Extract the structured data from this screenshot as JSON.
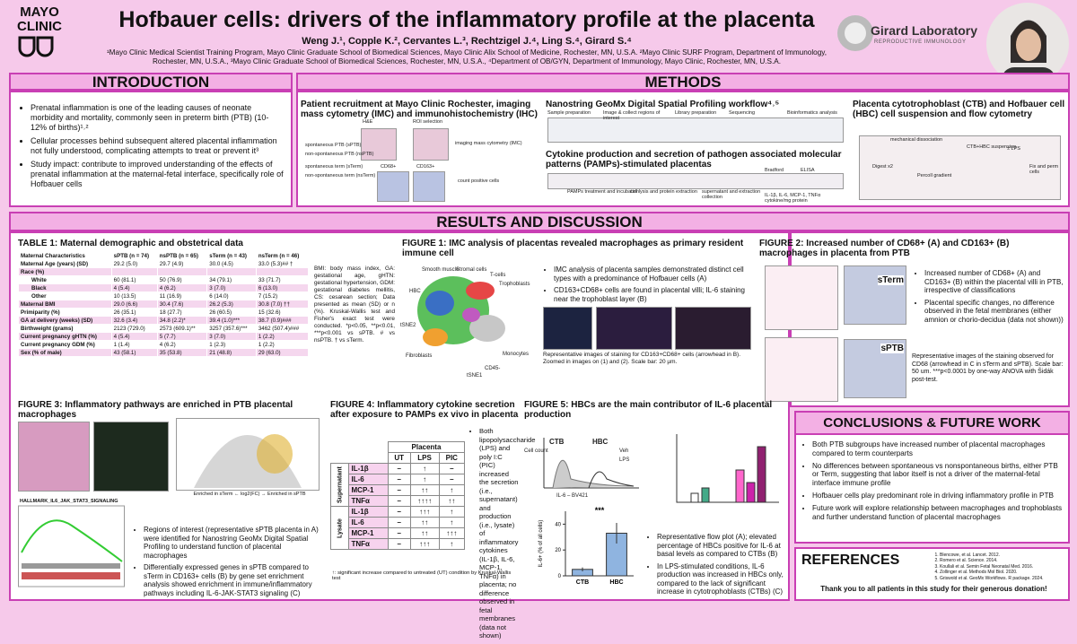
{
  "header": {
    "logo": "MAYO CLINIC",
    "title": "Hofbauer cells: drivers of the inflammatory profile at the placenta",
    "authors": "Weng J.¹, Copple K.², Cervantes L.³, Rechtzigel J.⁴, Ling S.⁴, Girard S.⁴",
    "affiliations": "¹Mayo Clinic Medical Scientist Training Program, Mayo Clinic Graduate School of Biomedical Sciences, Mayo Clinic Alix School of Medicine, Rochester, MN, U.S.A. ²Mayo Clinic SURF Program, Department of Immunology, Rochester, MN, U.S.A., ³Mayo Clinic Graduate School of Biomedical Sciences, Rochester, MN, U.S.A., ⁴Department of OB/GYN, Department of Immunology, Mayo Clinic, Rochester, MN, U.S.A.",
    "lab": "Girard Laboratory",
    "lab_sub": "REPRODUCTIVE IMMUNOLOGY"
  },
  "introduction": {
    "heading": "INTRODUCTION",
    "bullets": [
      "Prenatal inflammation is one of the leading causes of neonate morbidity and mortality, commonly seen in preterm birth (PTB) (10-12% of births)¹˒²",
      "Cellular processes behind subsequent altered placental inflammation not fully understood, complicating attempts to treat or prevent it³",
      "Study impact: contribute to improved understanding of the effects of prenatal inflammation at the maternal-fetal interface, specifically role of Hofbauer cells"
    ]
  },
  "methods": {
    "heading": "METHODS",
    "panels": [
      {
        "title": "Patient recruitment at Mayo Clinic Rochester, imaging mass cytometry (IMC) and immunohistochemistry (IHC)",
        "labels": [
          "H&E",
          "ROI selection",
          "imaging mass cytometry (IMC)",
          "CD68+",
          "CD163+",
          "count positive cells",
          "spontaneous PTB (sPTB)",
          "non-spontaneous PTB (nsPTB)",
          "spontaneous term (sTerm)",
          "non-spontaneous term (nsTerm)"
        ]
      },
      {
        "title": "Nanostring GeoMx Digital Spatial Profiling workflow⁴˒⁵",
        "labels": [
          "Sample preparation",
          "Image & collect regions of interest",
          "Library preparation",
          "Sequencing",
          "Bioinformatics analysis"
        ]
      },
      {
        "title": "Cytokine production and secretion of pathogen associated molecular patterns (PAMPs)-stimulated placentas",
        "labels": [
          "PAMPs treatment and incubation",
          "cell lysis and protein extraction",
          "supernatant and extraction collection",
          "Bradford",
          "ELISA",
          "IL-1β, IL-6, MCP-1, TNFα cytokine/mg protein"
        ]
      },
      {
        "title": "Placenta cytotrophoblast (CTB) and Hofbauer cell (HBC) cell suspension and flow cytometry",
        "labels": [
          "mechanical dissociation",
          "Digest x2",
          "Percoll gradient",
          "CTB+HBC suspension",
          "± LPS",
          "Fix and perm cells"
        ]
      }
    ]
  },
  "results": {
    "heading": "RESULTS AND DISCUSSION",
    "table1": {
      "title": "TABLE 1: Maternal demographic and obstetrical data",
      "rows": [
        [
          "Maternal Characteristics",
          "sPTB (n = 74)",
          "nsPTB (n = 65)",
          "sTerm (n = 43)",
          "nsTerm (n = 46)"
        ],
        [
          "Maternal Age (years) (SD)",
          "29.2 (5.0)",
          "29.7 (4.9)",
          "30.0 (4.5)",
          "33.0 (5.3)## †"
        ],
        [
          "Race (%)",
          "",
          "",
          "",
          ""
        ],
        [
          "White",
          "60 (81.1)",
          "50 (76.9)",
          "34 (79.1)",
          "33 (71.7)"
        ],
        [
          "Black",
          "4 (5.4)",
          "4 (6.2)",
          "3 (7.0)",
          "6 (13.0)"
        ],
        [
          "Other",
          "10 (13.5)",
          "11 (16.9)",
          "6 (14.0)",
          "7 (15.2)"
        ],
        [
          "Maternal BMI",
          "29.0 (6.6)",
          "30.4 (7.6)",
          "26.2 (5.3)",
          "30.8 (7.0) ††"
        ],
        [
          "Primiparity (%)",
          "26 (35.1)",
          "18 (27.7)",
          "26 (60.5)",
          "15 (32.6)"
        ],
        [
          "GA at delivery (weeks) (SD)",
          "32.6 (3.4)",
          "34.8 (2.2)*",
          "39.4 (1.0)***",
          "38.7 (0.9)###"
        ],
        [
          "Birthweight (grams)",
          "2123 (729.0)",
          "2573 (609.1)**",
          "3257 (357.6)***",
          "3462 (507.4)###"
        ],
        [
          "Current pregnancy gHTN (%)",
          "4 (5.4)",
          "5 (7.7)",
          "3 (7.0)",
          "1 (2.2)"
        ],
        [
          "Current pregnancy GDM (%)",
          "1 (1.4)",
          "4 (6.2)",
          "1 (2.3)",
          "1 (2.2)"
        ],
        [
          "Sex (% of male)",
          "43 (58.1)",
          "35 (53.8)",
          "21 (48.8)",
          "29 (63.0)"
        ]
      ],
      "note": "BMI: body mass index, GA: gestational age, gHTN: gestational hypertension, GDM: gestational diabetes mellitis, CS: cesarean section; Data presented as mean (SD) or n (%). Kruskal-Wallis test and Fisher's exact test were conducted. *p<0.05, **p<0.01, ***p<0.001 vs sPTB. # vs nsPTB. † vs sTerm."
    },
    "figure1": {
      "title": "FIGURE 1: IMC analysis of placentas revealed macrophages as primary resident immune cell",
      "labels": [
        "Smooth muscle",
        "Stromal cells",
        "T-cells",
        "Trophoblasts",
        "HBC",
        "Fibroblasts",
        "Monocytes",
        "CD45-",
        "tSNE1",
        "tSNE2"
      ],
      "bullets": [
        "IMC analysis of placenta samples demonstrated distinct cell types with a predominance of Hofbauer cells (A)",
        "CD163+CD68+ cells are found in placental villi; IL-6 staining near the trophoblast layer (B)"
      ],
      "caption": "Representative images of staining for CD163+CD68+ cells (arrowhead in B). Zoomed in images on (1) and (2). Scale bar: 20 µm."
    },
    "figure2": {
      "title": "FIGURE 2: Increased number of CD68+ (A) and CD163+ (B) macrophages in placenta from PTB",
      "labels": [
        "sTerm",
        "sPTB"
      ],
      "bullets": [
        "Increased number of CD68+ (A) and CD163+ (B) within the placental villi in PTB, irrespective of classifications",
        "Placental specific changes, no difference observed in the fetal membranes (either amnion or chorio-decidua (data not shown))"
      ],
      "caption": "Representative images of the staining observed for CD68 (arrowhead in C in sTerm and sPTB). Scale bar: 50 um. ***p<0.0001 by one-way ANOVA with Šidák post-test."
    },
    "figure3": {
      "title": "FIGURE 3: Inflammatory pathways are enriched in PTB placental macrophages",
      "labels": [
        "HALLMARK_IL6_JAK_STAT3_SIGNALING",
        "Enriched in sTerm ← log2(FC) → Enriched in sPTB"
      ],
      "bullets": [
        "Regions of interest (representative sPTB placenta in A) were identified for Nanostring GeoMx Digital Spatial Profiling to understand function of placental macrophages",
        "Differentially expressed genes in sPTB compared to sTerm in CD163+ cells (B) by gene set enrichment analysis showed enrichment in immune/inflammatory pathways including IL-6-JAK-STAT3 signaling (C)"
      ]
    },
    "figure4": {
      "title": "FIGURE 4: Inflammatory cytokine secretion after exposure to PAMPs ex vivo in placenta",
      "group": "Placenta",
      "columns": [
        "UT",
        "LPS",
        "PIC"
      ],
      "sections": [
        {
          "name": "Supernatant",
          "rows": [
            [
              "IL-1β",
              "–",
              "↑",
              "–"
            ],
            [
              "IL-6",
              "–",
              "↑",
              "–"
            ],
            [
              "MCP-1",
              "–",
              "↑↑",
              "↑"
            ],
            [
              "TNFα",
              "–",
              "↑↑↑↑",
              "↑↑"
            ]
          ]
        },
        {
          "name": "Lysate",
          "rows": [
            [
              "IL-1β",
              "–",
              "↑↑↑",
              "↑"
            ],
            [
              "IL-6",
              "–",
              "↑↑",
              "↑"
            ],
            [
              "MCP-1",
              "–",
              "↑↑",
              "↑↑↑"
            ],
            [
              "TNFα",
              "–",
              "↑↑↑",
              "↑"
            ]
          ]
        }
      ],
      "bullets": [
        "Both lipopolysaccharide (LPS) and poly I:C (PIC) increased the secretion (i.e., supernatant) and production (i.e., lysate) of inflammatory cytokines (IL-1β, IL-6, MCP-1, TNFα) in placenta; no difference observed in fetal membranes (data not shown)"
      ],
      "footnote": "↑: significant increase compared to untreated (UT) condition by Kruskal-Wallis test"
    },
    "figure5": {
      "title": "FIGURE 5: HBCs are the main contributor of IL-6 placental production",
      "labels": [
        "CTB",
        "HBC",
        "Veh",
        "LPS",
        "IL-6 – BV421",
        "Cell count"
      ],
      "chart": {
        "type": "bar",
        "ylabel": "IL-6+ (% of all cells)",
        "categories": [
          "CTB",
          "HBC"
        ],
        "values": [
          5,
          33
        ],
        "errors": [
          1.5,
          8
        ],
        "ylim": [
          0,
          50
        ],
        "yticks": [
          0,
          20,
          40
        ],
        "annotation": "***",
        "color": "#8fb4e0"
      },
      "bullets": [
        "Representative flow plot (A); elevated percentage of HBCs positive for IL-6 at basal levels as compared to CTBs (B)",
        "In LPS-stimulated conditions, IL-6 production was increased in HBCs only, compared to the lack of significant increase in cytotrophoblasts (CTBs) (C)"
      ]
    }
  },
  "conclusions": {
    "heading": "CONCLUSIONS & FUTURE WORK",
    "bullets": [
      "Both PTB subgroups have increased number of placental macrophages compared to term counterparts",
      "No differences between spontaneous vs nonspontaneous births, either PTB or Term, suggesting that labor itself is not a driver of the maternal-fetal interface immune profile",
      "Hofbauer cells play predominant role in driving inflammatory profile in PTB",
      "Future work will explore relationship between macrophages and trophoblasts and further understand function of placental macrophages"
    ]
  },
  "references": {
    "heading": "REFERENCES",
    "items": [
      "Blencowe, et al. Lancet. 2012.",
      "Romero et al. Science. 2014.",
      "Koullali et al. Semin Fetal Neonatal Med. 2016.",
      "Zollinger et al. Methods Mol Biol. 2020.",
      "Griswold et al. GeoMx Workflows. R package. 2024."
    ],
    "thanks": "Thank you to all patients in this study for their generous donation!"
  }
}
